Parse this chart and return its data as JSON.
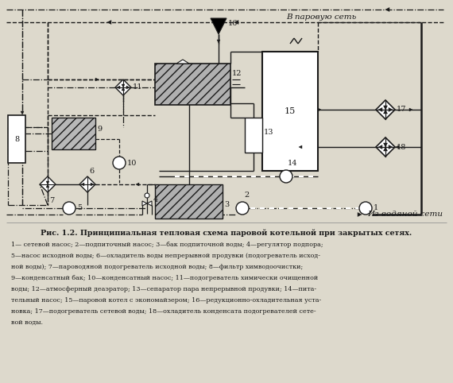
{
  "title": "Рис. 1.2. Принципиальная тепловая схема паровой котельной при закрытых сетях.",
  "caption_lines": [
    "1— сетевой насос; 2—подпиточный насос; 3—бак подпиточной воды; 4—регулятор подпора;",
    "5—насос исходной воды; 6—охладитель воды непрерывной продувки (подогреватель исход-",
    "ной воды); 7—пароводяной подогреватель исходной воды; 8—фильтр химводоочистки;",
    "9—конденсатный бак; 10—конденсатный насос; 11—подогреватель химически очищенной",
    "воды; 12—атмосферный деаэратор; 13—сепаратор пара непрерывной продувки; 14—пита-",
    "тельный насос; 15—паровой котел с экономайзером; 16—редукционно-охладительная уста-",
    "новка; 17—подогреватель сетевой воды; 18—охладитель конденсата подогревателей сете-",
    "вой воды."
  ],
  "bg_color": "#ddd9cc",
  "line_color": "#1a1a1a",
  "label_steam_network": "В паровую сеть",
  "label_water_network": "Из водяной сети"
}
